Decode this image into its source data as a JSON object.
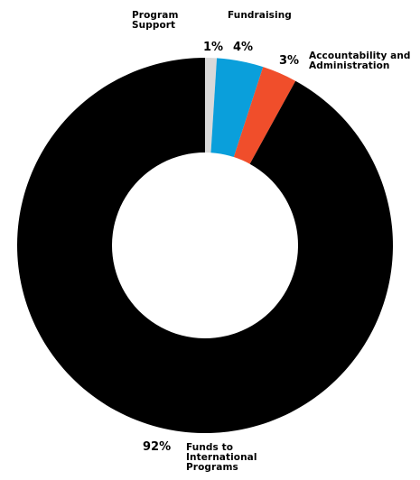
{
  "chart_data": {
    "type": "donut",
    "title": "",
    "categories": [
      "Program Support",
      "Fundraising",
      "Accountability and Administration",
      "Funds to International Programs"
    ],
    "values": [
      1,
      4,
      3,
      92
    ],
    "value_labels": [
      "1%",
      "4%",
      "3%",
      "92%"
    ],
    "category_labels": [
      "Program\nSupport",
      "Fundraising",
      "Accountability and\nAdministration",
      "Funds to\nInternational\nPrograms"
    ],
    "colors": [
      "#d9d9d9",
      "#0a9fdb",
      "#f04e2b",
      "#000000"
    ],
    "legend": "none (labels placed next to slices)"
  }
}
